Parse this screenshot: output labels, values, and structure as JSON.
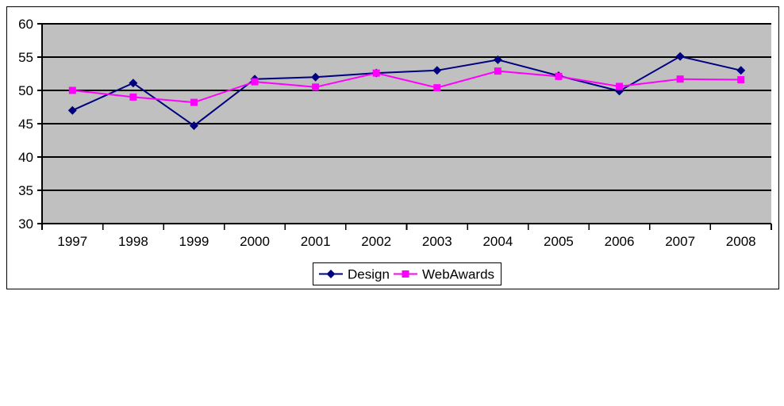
{
  "chart": {
    "background_color": "#FFFFFF",
    "border_color": "#000000",
    "plot_background_color": "#C0C0C0",
    "gridline_color": "#000000",
    "axis_color": "#000000",
    "tick_label_color": "#000000",
    "legend": {
      "background_color": "#FFFFFF",
      "border_color": "#000000"
    }
  },
  "chart_data": {
    "type": "line",
    "title": "",
    "xlabel": "",
    "ylabel": "",
    "categories": [
      "1997",
      "1998",
      "1999",
      "2000",
      "2001",
      "2002",
      "2003",
      "2004",
      "2005",
      "2006",
      "2007",
      "2008"
    ],
    "series": [
      {
        "name": "Design",
        "color": "#000080",
        "marker": "diamond",
        "values": [
          47.0,
          51.1,
          44.7,
          51.7,
          52.0,
          52.6,
          53.0,
          54.6,
          52.2,
          49.9,
          55.1,
          53.0
        ]
      },
      {
        "name": "WebAwards",
        "color": "#FF00FF",
        "marker": "square",
        "values": [
          50.0,
          49.0,
          48.2,
          51.3,
          50.5,
          52.6,
          50.4,
          52.9,
          52.1,
          50.6,
          51.7,
          51.6
        ]
      }
    ],
    "ylim": [
      30,
      60
    ],
    "yticks": [
      30,
      35,
      40,
      45,
      50,
      55,
      60
    ],
    "grid": true,
    "legend_position": "bottom"
  }
}
